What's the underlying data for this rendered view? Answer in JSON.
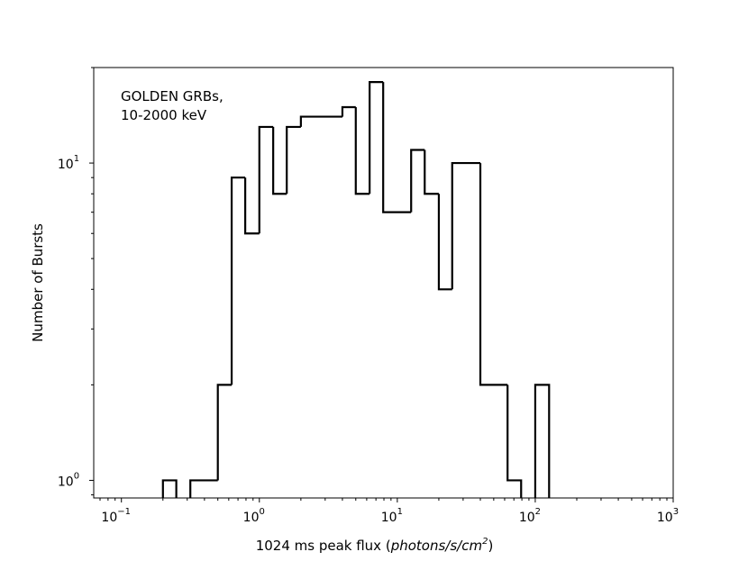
{
  "chart_data": {
    "type": "histogram-step",
    "title": "",
    "xlabel": "1024 ms peak flux (photons/s/cm²)",
    "xlabel_prefix": "1024 ms peak flux (",
    "xlabel_unit": "photons/s/cm",
    "xlabel_sup": "2",
    "xlabel_suffix": ")",
    "ylabel": "Number of Bursts",
    "x_scale": "log",
    "y_scale": "log",
    "xlim": [
      0.063,
      1000
    ],
    "ylim": [
      0.88,
      20
    ],
    "grid": false,
    "x_ticks": [
      {
        "value": 0.1,
        "base": "10",
        "exp": "−1"
      },
      {
        "value": 1,
        "base": "10",
        "exp": "0"
      },
      {
        "value": 10,
        "base": "10",
        "exp": "1"
      },
      {
        "value": 100,
        "base": "10",
        "exp": "2"
      },
      {
        "value": 1000,
        "base": "10",
        "exp": "3"
      }
    ],
    "y_ticks": [
      {
        "value": 1,
        "base": "10",
        "exp": "0"
      },
      {
        "value": 10,
        "base": "10",
        "exp": "1"
      }
    ],
    "annotation": [
      "GOLDEN GRBs,",
      "10-2000 keV"
    ],
    "bins": [
      {
        "x0": 0.2,
        "x1": 0.25,
        "count": 1
      },
      {
        "x0": 0.25,
        "x1": 0.316,
        "count": 0
      },
      {
        "x0": 0.316,
        "x1": 0.5,
        "count": 1
      },
      {
        "x0": 0.5,
        "x1": 0.63,
        "count": 2
      },
      {
        "x0": 0.63,
        "x1": 0.79,
        "count": 9
      },
      {
        "x0": 0.79,
        "x1": 1.0,
        "count": 6
      },
      {
        "x0": 1.0,
        "x1": 1.26,
        "count": 13
      },
      {
        "x0": 1.26,
        "x1": 1.58,
        "count": 8
      },
      {
        "x0": 1.58,
        "x1": 2.0,
        "count": 13
      },
      {
        "x0": 2.0,
        "x1": 4.0,
        "count": 14
      },
      {
        "x0": 4.0,
        "x1": 5.0,
        "count": 15
      },
      {
        "x0": 5.0,
        "x1": 6.3,
        "count": 8
      },
      {
        "x0": 6.3,
        "x1": 7.9,
        "count": 18
      },
      {
        "x0": 7.9,
        "x1": 12.6,
        "count": 7
      },
      {
        "x0": 12.6,
        "x1": 15.8,
        "count": 11
      },
      {
        "x0": 15.8,
        "x1": 20.0,
        "count": 8
      },
      {
        "x0": 20.0,
        "x1": 25.0,
        "count": 4
      },
      {
        "x0": 25.0,
        "x1": 40.0,
        "count": 10
      },
      {
        "x0": 40.0,
        "x1": 63.0,
        "count": 2
      },
      {
        "x0": 63.0,
        "x1": 79.0,
        "count": 1
      },
      {
        "x0": 79.0,
        "x1": 100.0,
        "count": 0
      },
      {
        "x0": 100.0,
        "x1": 126.0,
        "count": 2
      }
    ]
  }
}
